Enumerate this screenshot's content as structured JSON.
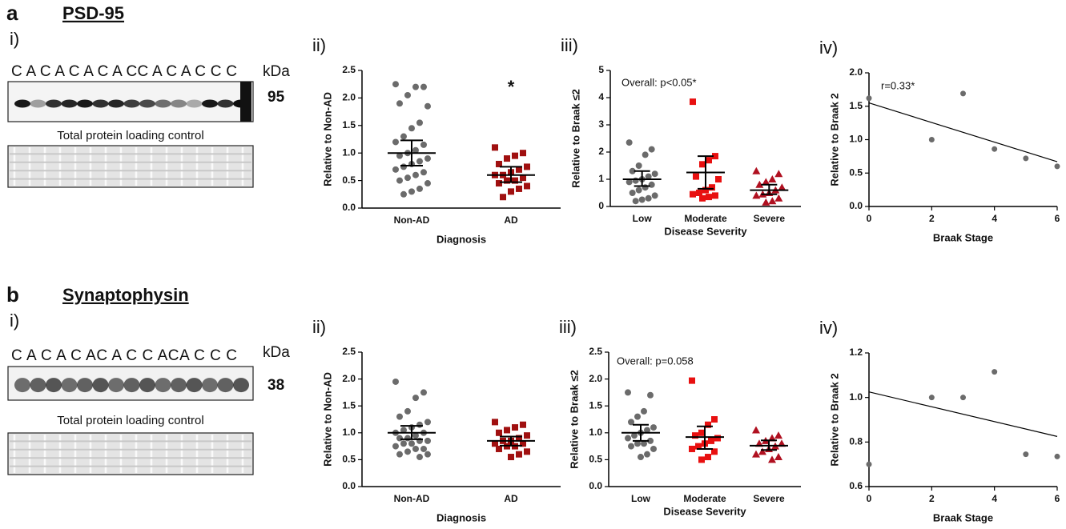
{
  "figure": {
    "sections": [
      {
        "letter": "a",
        "protein": "PSD-95",
        "blot_panel": "i)",
        "lanes": "C A C A C A C A CC A C A C C C",
        "kda_label": "kDa",
        "kda": "95",
        "control_label": "Total protein loading control"
      },
      {
        "letter": "b",
        "protein": "Synaptophysin",
        "blot_panel": "i)",
        "lanes": "C A C A C AC A C C ACA C C C",
        "kda_label": "kDa",
        "kda": "38",
        "control_label": "Total protein loading control"
      }
    ]
  },
  "chart_data": [
    {
      "type": "strip",
      "panel": "ii)",
      "y_label": "Relative to Non-AD",
      "x_label": "Diagnosis",
      "annotation": "*",
      "categories": [
        "Non-AD",
        "AD"
      ],
      "ylim": [
        0,
        2.5
      ],
      "yticks": [
        {
          "value": 0,
          "label": "0.0"
        },
        {
          "value": 0.5,
          "label": "0.5"
        },
        {
          "value": 1,
          "label": "1.0"
        },
        {
          "value": 1.5,
          "label": "1.5"
        },
        {
          "value": 2,
          "label": "2.0"
        },
        {
          "value": 2.5,
          "label": "2.5"
        }
      ],
      "series": [
        {
          "color": "#6b6b6b",
          "marker": "circle",
          "values": [
            2.25,
            2.2,
            2.2,
            2.05,
            1.9,
            1.85,
            1.55,
            1.45,
            1.3,
            1.2,
            1.15,
            1.05,
            1.0,
            0.95,
            0.9,
            0.85,
            0.8,
            0.75,
            0.7,
            0.65,
            0.6,
            0.55,
            0.5,
            0.45,
            0.35,
            0.3,
            0.25
          ],
          "mean": 1.0,
          "ci_low": 0.77,
          "ci_high": 1.23
        },
        {
          "color": "#a01010",
          "marker": "square",
          "values": [
            1.1,
            1.0,
            0.95,
            0.9,
            0.8,
            0.75,
            0.7,
            0.65,
            0.6,
            0.6,
            0.55,
            0.5,
            0.5,
            0.45,
            0.4,
            0.35,
            0.3,
            0.2
          ],
          "mean": 0.6,
          "ci_low": 0.47,
          "ci_high": 0.75
        }
      ]
    },
    {
      "type": "strip",
      "panel": "iii)",
      "y_label": "Relative to Braak ≤2",
      "x_label": "Disease Severity",
      "annotation": "Overall: p<0.05*",
      "categories": [
        "Low",
        "Moderate",
        "Severe"
      ],
      "ylim": [
        0,
        5
      ],
      "yticks": [
        0,
        1,
        2,
        3,
        4,
        5
      ],
      "series": [
        {
          "color": "#6b6b6b",
          "marker": "circle",
          "values": [
            2.35,
            2.1,
            1.9,
            1.5,
            1.3,
            1.2,
            1.1,
            1.0,
            0.95,
            0.9,
            0.8,
            0.7,
            0.6,
            0.5,
            0.4,
            0.3,
            0.25,
            0.2
          ],
          "mean": 1.0,
          "ci_low": 0.75,
          "ci_high": 1.3
        },
        {
          "color": "#e81010",
          "marker": "square",
          "values": [
            3.85,
            1.85,
            1.7,
            1.55,
            1.1,
            1.0,
            0.7,
            0.6,
            0.5,
            0.45,
            0.4,
            0.35,
            0.3
          ],
          "mean": 1.25,
          "ci_low": 0.65,
          "ci_high": 1.85
        },
        {
          "color": "#b01020",
          "marker": "triangle",
          "values": [
            1.3,
            1.2,
            1.0,
            0.9,
            0.8,
            0.7,
            0.6,
            0.5,
            0.45,
            0.4,
            0.3,
            0.2,
            0.15
          ],
          "mean": 0.6,
          "ci_low": 0.45,
          "ci_high": 0.8
        }
      ]
    },
    {
      "type": "scatter",
      "panel": "iv)",
      "y_label": "Relative to Braak 2",
      "x_label": "Braak Stage",
      "annotation": "r=0.33*",
      "xlim": [
        0,
        6
      ],
      "xticks": [
        0,
        2,
        4,
        6
      ],
      "ylim": [
        0,
        2
      ],
      "yticks": [
        {
          "value": 0,
          "label": "0.0"
        },
        {
          "value": 0.5,
          "label": "0.5"
        },
        {
          "value": 1,
          "label": "1.0"
        },
        {
          "value": 1.5,
          "label": "1.5"
        },
        {
          "value": 2,
          "label": "2.0"
        }
      ],
      "x": [
        0,
        2,
        3,
        4,
        5,
        6
      ],
      "values": [
        1.62,
        1.0,
        1.69,
        0.86,
        0.72,
        0.6
      ],
      "color": "#6b6b6b",
      "fit": {
        "x": [
          0,
          6
        ],
        "y": [
          1.55,
          0.67
        ]
      }
    },
    {
      "type": "strip",
      "panel": "ii)",
      "y_label": "Relative to  Non-AD",
      "x_label": "Diagnosis",
      "categories": [
        "Non-AD",
        "AD"
      ],
      "ylim": [
        0,
        2.5
      ],
      "yticks": [
        {
          "value": 0,
          "label": "0.0"
        },
        {
          "value": 0.5,
          "label": "0.5"
        },
        {
          "value": 1,
          "label": "1.0"
        },
        {
          "value": 1.5,
          "label": "1.5"
        },
        {
          "value": 2,
          "label": "2.0"
        },
        {
          "value": 2.5,
          "label": "2.5"
        }
      ],
      "series": [
        {
          "color": "#6b6b6b",
          "marker": "circle",
          "values": [
            1.95,
            1.75,
            1.65,
            1.4,
            1.3,
            1.2,
            1.15,
            1.1,
            1.05,
            1.0,
            1.0,
            0.95,
            0.9,
            0.9,
            0.85,
            0.85,
            0.8,
            0.8,
            0.75,
            0.7,
            0.7,
            0.65,
            0.6,
            0.6,
            0.55
          ],
          "mean": 1.0,
          "ci_low": 0.88,
          "ci_high": 1.13
        },
        {
          "color": "#a01010",
          "marker": "square",
          "values": [
            1.2,
            1.15,
            1.1,
            1.05,
            1.0,
            0.95,
            0.9,
            0.85,
            0.85,
            0.8,
            0.8,
            0.75,
            0.75,
            0.7,
            0.65,
            0.6,
            0.55
          ],
          "mean": 0.85,
          "ci_low": 0.76,
          "ci_high": 0.93
        }
      ]
    },
    {
      "type": "strip",
      "panel": "iii)",
      "y_label": "Relative to Braak ≤2",
      "x_label": "Disease Severity",
      "annotation": "Overall: p=0.058",
      "categories": [
        "Low",
        "Moderate",
        "Severe"
      ],
      "ylim": [
        0,
        2.5
      ],
      "yticks": [
        {
          "value": 0,
          "label": "0.0"
        },
        {
          "value": 0.5,
          "label": "0.5"
        },
        {
          "value": 1,
          "label": "1.0"
        },
        {
          "value": 1.5,
          "label": "1.5"
        },
        {
          "value": 2,
          "label": "2.0"
        },
        {
          "value": 2.5,
          "label": "2.5"
        }
      ],
      "series": [
        {
          "color": "#6b6b6b",
          "marker": "circle",
          "values": [
            1.75,
            1.7,
            1.4,
            1.3,
            1.2,
            1.1,
            1.05,
            1.0,
            0.95,
            0.9,
            0.85,
            0.8,
            0.8,
            0.75,
            0.7,
            0.6,
            0.55
          ],
          "mean": 1.0,
          "ci_low": 0.85,
          "ci_high": 1.15
        },
        {
          "color": "#e81010",
          "marker": "square",
          "values": [
            1.97,
            1.25,
            1.15,
            1.0,
            0.95,
            0.9,
            0.85,
            0.8,
            0.75,
            0.7,
            0.65,
            0.55,
            0.5
          ],
          "mean": 0.92,
          "ci_low": 0.7,
          "ci_high": 1.12
        },
        {
          "color": "#b01020",
          "marker": "triangle",
          "values": [
            1.05,
            0.95,
            0.9,
            0.85,
            0.8,
            0.8,
            0.75,
            0.7,
            0.65,
            0.6,
            0.55,
            0.5
          ],
          "mean": 0.76,
          "ci_low": 0.68,
          "ci_high": 0.86
        }
      ]
    },
    {
      "type": "scatter",
      "panel": "iv)",
      "y_label": "Relative to Braak 2",
      "x_label": "Braak Stage",
      "xlim": [
        0,
        6
      ],
      "xticks": [
        0,
        2,
        4,
        6
      ],
      "ylim": [
        0.6,
        1.2
      ],
      "yticks": [
        {
          "value": 0.6,
          "label": "0.6"
        },
        {
          "value": 0.8,
          "label": "0.8"
        },
        {
          "value": 1,
          "label": "1.0"
        },
        {
          "value": 1.2,
          "label": "1.2"
        }
      ],
      "x": [
        0,
        2,
        3,
        4,
        5,
        6
      ],
      "values": [
        0.7,
        1.0,
        1.0,
        1.115,
        0.745,
        0.735
      ],
      "color": "#6b6b6b",
      "fit": {
        "x": [
          0,
          6
        ],
        "y": [
          1.025,
          0.825
        ]
      }
    }
  ]
}
